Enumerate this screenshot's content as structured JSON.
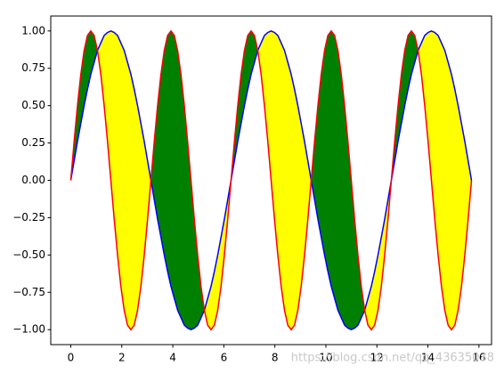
{
  "chart_data": {
    "type": "line",
    "x": [
      0,
      0.131,
      0.262,
      0.393,
      0.524,
      0.654,
      0.785,
      0.916,
      1.047,
      1.178,
      1.309,
      1.44,
      1.571,
      1.702,
      1.833,
      1.963,
      2.094,
      2.225,
      2.356,
      2.487,
      2.618,
      2.749,
      2.88,
      3.011,
      3.142,
      3.272,
      3.403,
      3.534,
      3.665,
      3.796,
      3.927,
      4.058,
      4.189,
      4.32,
      4.451,
      4.581,
      4.712,
      4.843,
      4.974,
      5.105,
      5.236,
      5.367,
      5.498,
      5.629,
      5.76,
      5.89,
      6.021,
      6.152,
      6.283,
      6.414,
      6.545,
      6.676,
      6.807,
      6.938,
      7.069,
      7.199,
      7.33,
      7.461,
      7.592,
      7.723,
      7.854,
      7.985,
      8.116,
      8.247,
      8.378,
      8.508,
      8.639,
      8.77,
      8.901,
      9.032,
      9.163,
      9.294,
      9.425,
      9.556,
      9.687,
      9.817,
      9.948,
      10.079,
      10.21,
      10.341,
      10.472,
      10.603,
      10.734,
      10.865,
      10.996,
      11.126,
      11.257,
      11.388,
      11.519,
      11.65,
      11.781,
      11.912,
      12.043,
      12.174,
      12.305,
      12.435,
      12.566,
      12.697,
      12.828,
      12.959,
      13.09,
      13.221,
      13.352,
      13.483,
      13.614,
      13.744,
      13.875,
      14.006,
      14.137,
      14.268,
      14.399,
      14.53,
      14.661,
      14.792,
      14.923,
      15.053,
      15.184,
      15.315,
      15.446,
      15.577,
      15.708
    ],
    "series": [
      {
        "color": "#0000ff",
        "values": [
          0,
          0.13,
          0.26,
          0.38,
          0.5,
          0.61,
          0.71,
          0.79,
          0.87,
          0.92,
          0.97,
          0.99,
          1,
          0.99,
          0.97,
          0.92,
          0.87,
          0.79,
          0.71,
          0.61,
          0.5,
          0.38,
          0.26,
          0.13,
          0,
          -0.13,
          -0.26,
          -0.38,
          -0.5,
          -0.61,
          -0.71,
          -0.79,
          -0.87,
          -0.92,
          -0.97,
          -0.99,
          -1,
          -0.99,
          -0.97,
          -0.92,
          -0.87,
          -0.79,
          -0.71,
          -0.61,
          -0.5,
          -0.38,
          -0.26,
          -0.13,
          0,
          0.13,
          0.26,
          0.38,
          0.5,
          0.61,
          0.71,
          0.79,
          0.87,
          0.92,
          0.97,
          0.99,
          1,
          0.99,
          0.97,
          0.92,
          0.87,
          0.79,
          0.71,
          0.61,
          0.5,
          0.38,
          0.26,
          0.13,
          0,
          -0.13,
          -0.26,
          -0.38,
          -0.5,
          -0.61,
          -0.71,
          -0.79,
          -0.87,
          -0.92,
          -0.97,
          -0.99,
          -1,
          -0.99,
          -0.97,
          -0.92,
          -0.87,
          -0.79,
          -0.71,
          -0.61,
          -0.5,
          -0.38,
          -0.26,
          -0.13,
          0,
          0.13,
          0.26,
          0.38,
          0.5,
          0.61,
          0.71,
          0.79,
          0.87,
          0.92,
          0.97,
          0.99,
          1,
          0.99,
          0.97,
          0.92,
          0.87,
          0.79,
          0.71,
          0.61,
          0.5,
          0.38,
          0.26,
          0.13,
          0
        ]
      },
      {
        "color": "#ff0000",
        "values": [
          0,
          0.26,
          0.5,
          0.71,
          0.87,
          0.97,
          1,
          0.97,
          0.87,
          0.71,
          0.5,
          0.26,
          0,
          -0.26,
          -0.5,
          -0.71,
          -0.87,
          -0.97,
          -1,
          -0.97,
          -0.87,
          -0.71,
          -0.5,
          -0.26,
          0,
          0.26,
          0.5,
          0.71,
          0.87,
          0.97,
          1,
          0.97,
          0.87,
          0.71,
          0.5,
          0.26,
          0,
          -0.26,
          -0.5,
          -0.71,
          -0.87,
          -0.97,
          -1,
          -0.97,
          -0.87,
          -0.71,
          -0.5,
          -0.26,
          0,
          0.26,
          0.5,
          0.71,
          0.87,
          0.97,
          1,
          0.97,
          0.87,
          0.71,
          0.5,
          0.26,
          0,
          -0.26,
          -0.5,
          -0.71,
          -0.87,
          -0.97,
          -1,
          -0.97,
          -0.87,
          -0.71,
          -0.5,
          -0.26,
          0,
          0.26,
          0.5,
          0.71,
          0.87,
          0.97,
          1,
          0.97,
          0.87,
          0.71,
          0.5,
          0.26,
          0,
          -0.26,
          -0.5,
          -0.71,
          -0.87,
          -0.97,
          -1,
          -0.97,
          -0.87,
          -0.71,
          -0.5,
          -0.26,
          0,
          0.26,
          0.5,
          0.71,
          0.87,
          0.97,
          1,
          0.97,
          0.87,
          0.71,
          0.5,
          0.26,
          0,
          -0.26,
          -0.5,
          -0.71,
          -0.87,
          -0.97,
          -1,
          -0.97,
          -0.87,
          -0.71,
          -0.5,
          -0.26,
          0
        ]
      }
    ],
    "fill_between": {
      "series": [
        0,
        1
      ],
      "colors": [
        "#ffff00",
        "#008000"
      ]
    },
    "xlim": [
      -0.785,
      16.493
    ],
    "ylim": [
      -1.1,
      1.1
    ],
    "xticks": [
      0,
      2,
      4,
      6,
      8,
      10,
      12,
      14,
      16
    ],
    "yticks": [
      {
        "value": -1,
        "label": "−1.00"
      },
      {
        "value": -0.75,
        "label": "−0.75"
      },
      {
        "value": -0.5,
        "label": "−0.50"
      },
      {
        "value": -0.25,
        "label": "−0.25"
      },
      {
        "value": 0,
        "label": "0.00"
      },
      {
        "value": 0.25,
        "label": "0.25"
      },
      {
        "value": 0.5,
        "label": "0.50"
      },
      {
        "value": 0.75,
        "label": "0.75"
      },
      {
        "value": 1,
        "label": "1.00"
      }
    ],
    "grid": false,
    "watermark": "https://blog.csdn.net/qq_43635038"
  }
}
